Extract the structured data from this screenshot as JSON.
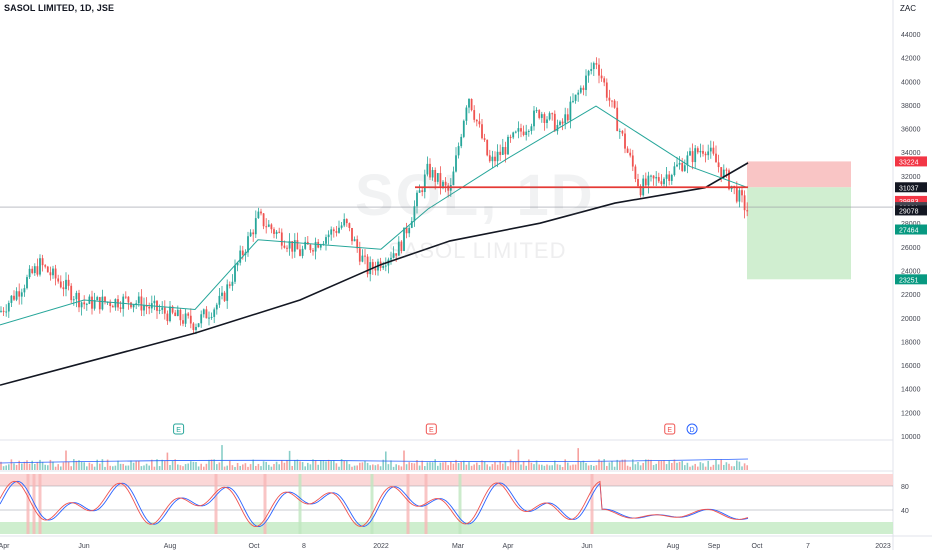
{
  "header": {
    "symbol_title": "SASOL LIMITED, 1D, JSE",
    "currency": "ZAC"
  },
  "watermark": {
    "ticker": "SOL, 1D",
    "name": "SASOL LIMITED"
  },
  "colors": {
    "up": "#26a69a",
    "down": "#ef5350",
    "ma_slow": "#131722",
    "ma_fast": "#26a69a",
    "resistance": "#e53935",
    "stop_zone": "#f8bbbb",
    "target_zone": "#c8ebc8",
    "stoch_k": "#2962ff",
    "stoch_d": "#ef5350"
  },
  "chart_data": [
    {
      "type": "candlestick",
      "title": "SASOL LIMITED, 1D, JSE",
      "y_unit": "ZAC",
      "ylim": [
        10000,
        45000
      ],
      "y_ticks": [
        10000,
        12000,
        14000,
        16000,
        18000,
        20000,
        22000,
        24000,
        26000,
        28000,
        30000,
        32000,
        34000,
        36000,
        38000,
        40000,
        42000,
        44000
      ],
      "x_ticks": [
        "Apr",
        "Jun",
        "Aug",
        "Oct",
        "8",
        "2022",
        "Mar",
        "Apr",
        "Jun",
        "Aug",
        "Sep",
        "Oct",
        "7",
        "2023"
      ],
      "price_path": [
        [
          "Apr",
          20500
        ],
        [
          "May",
          24500
        ],
        [
          "Jun",
          21200
        ],
        [
          "Jul",
          21500
        ],
        [
          "Aug",
          19500
        ],
        [
          "Sep",
          21500
        ],
        [
          "Oct",
          28500
        ],
        [
          "Nov",
          25500
        ],
        [
          "Dec",
          28000
        ],
        [
          "2022",
          24000
        ],
        [
          "Jan",
          26000
        ],
        [
          "Feb",
          32500
        ],
        [
          "Mar",
          30500
        ],
        [
          "Mar",
          39000
        ],
        [
          "Apr",
          33000
        ],
        [
          "Apr",
          37500
        ],
        [
          "May",
          36000
        ],
        [
          "Jun",
          41800
        ],
        [
          "Jun",
          37000
        ],
        [
          "Jul",
          31000
        ],
        [
          "Aug",
          32000
        ],
        [
          "Aug",
          34500
        ],
        [
          "Sep",
          32000
        ],
        [
          "Sep",
          29000
        ]
      ],
      "moving_averages": [
        {
          "name": "MA slow",
          "points": [
            [
              "Apr",
              14300
            ],
            [
              "Aug",
              18700
            ],
            [
              "Oct",
              21500
            ],
            [
              "2022",
              24500
            ],
            [
              "Mar",
              26500
            ],
            [
              "May",
              28000
            ],
            [
              "Jun",
              29700
            ],
            [
              "Aug",
              31000
            ],
            [
              "Sep",
              33100
            ]
          ]
        },
        {
          "name": "MA fast",
          "points": [
            [
              "Apr",
              19400
            ],
            [
              "Jun",
              21500
            ],
            [
              "Aug",
              20700
            ],
            [
              "Oct",
              26600
            ],
            [
              "2022",
              25800
            ],
            [
              "Feb",
              29200
            ],
            [
              "Apr",
              33500
            ],
            [
              "Jun",
              37900
            ],
            [
              "Aug",
              32800
            ],
            [
              "Sep",
              31000
            ]
          ]
        }
      ],
      "annotations": {
        "horizontal_line": 31037,
        "last_price_line": 29361,
        "stop_zone": [
          31037,
          33224
        ],
        "target_zone": [
          23251,
          31037
        ]
      },
      "price_labels": [
        {
          "text": "33224",
          "value": 33224,
          "color": "#f23645"
        },
        {
          "text": "31037",
          "value": 31037,
          "color": "#131722"
        },
        {
          "text": "29883",
          "value": 29883,
          "color": "#f23645"
        },
        {
          "text": "29361",
          "value": 29361,
          "color": "#434651"
        },
        {
          "text": "29078",
          "value": 29078,
          "color": "#131722"
        },
        {
          "text": "27464",
          "value": 27464,
          "color": "#089981"
        },
        {
          "text": "23251",
          "value": 23251,
          "color": "#089981"
        }
      ],
      "event_markers": [
        {
          "x": 0.2,
          "letter": "E",
          "color": "#26a69a"
        },
        {
          "x": 0.483,
          "letter": "E",
          "color": "#ef5350"
        },
        {
          "x": 0.75,
          "letter": "E",
          "color": "#ef5350"
        },
        {
          "x": 0.775,
          "letter": "D",
          "color": "#2962ff"
        }
      ]
    },
    {
      "type": "bar",
      "title": "",
      "series": [
        {
          "name": "",
          "values": "volume histogram"
        }
      ]
    },
    {
      "type": "line",
      "title": "",
      "ylim": [
        0,
        100
      ],
      "y_ticks": [
        40,
        80
      ],
      "bands": {
        "overbought": 80,
        "oversold": 20
      }
    }
  ]
}
